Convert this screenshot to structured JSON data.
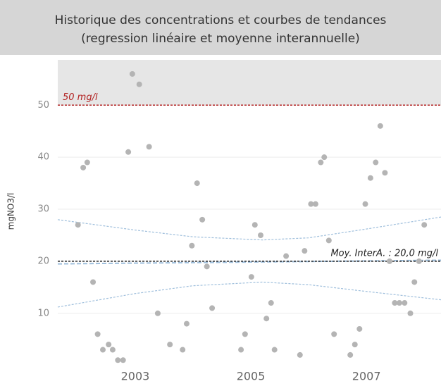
{
  "chart_data": {
    "type": "scatter",
    "title": [
      "Historique des concentrations et courbes de tendances",
      "(regression linéaire et moyenne interannuelle)"
    ],
    "y_label": "mgNO3/l",
    "xlim": [
      2001.66,
      2008.29
    ],
    "xticks": [
      2003,
      2005,
      2007
    ],
    "ylim": [
      0.5,
      58.7
    ],
    "yticks": [
      10,
      20,
      30,
      40,
      50
    ],
    "grid": true,
    "color": "#b4b4b4",
    "x": [
      2002.01,
      2002.1,
      2002.17,
      2002.27,
      2002.35,
      2002.44,
      2002.54,
      2002.61,
      2002.7,
      2002.79,
      2002.88,
      2002.95,
      2003.07,
      2003.24,
      2003.39,
      2003.6,
      2003.82,
      2003.89,
      2003.98,
      2004.07,
      2004.16,
      2004.24,
      2004.33,
      2004.83,
      2004.9,
      2005.01,
      2005.07,
      2005.17,
      2005.27,
      2005.35,
      2005.41,
      2005.61,
      2005.85,
      2005.93,
      2006.04,
      2006.12,
      2006.21,
      2006.27,
      2006.35,
      2006.44,
      2006.72,
      2006.8,
      2006.88,
      2006.98,
      2007.07,
      2007.16,
      2007.24,
      2007.32,
      2007.4,
      2007.49,
      2007.57,
      2007.66,
      2007.76,
      2007.83,
      2007.91,
      2008.0
    ],
    "values": [
      27,
      38,
      39,
      16,
      6,
      3,
      4,
      3,
      1,
      1,
      41,
      56,
      54,
      42,
      10,
      4,
      3,
      8,
      23,
      35,
      28,
      19,
      11,
      3,
      6,
      17,
      27,
      25,
      9,
      12,
      3,
      21,
      2,
      22,
      31,
      31,
      39,
      40,
      24,
      6,
      2,
      4,
      7,
      31,
      36,
      39,
      46,
      37,
      20,
      12,
      12,
      12,
      10,
      16,
      20,
      27
    ],
    "reference_lines": [
      {
        "value": 50,
        "label": "50 mg/l",
        "color": "#b22222"
      },
      {
        "value": 20,
        "label": "Moy. InterA. : 20,0 mg/l",
        "color": "#222222"
      }
    ],
    "trends": [
      {
        "color": "#9fbfdc",
        "x": [
          2001.66,
          2008.29
        ],
        "values": [
          19.5,
          20.2
        ]
      },
      {
        "color": "#9fbfdc",
        "x": [
          2001.66,
          2003,
          2004,
          2005.2,
          2006,
          2007,
          2008.29
        ],
        "values": [
          28,
          26,
          24.7,
          24.1,
          24.5,
          26.2,
          28.5
        ]
      },
      {
        "color": "#9fbfdc",
        "x": [
          2001.66,
          2003,
          2004,
          2005.2,
          2006,
          2007,
          2008.29
        ],
        "values": [
          11.2,
          13.8,
          15.3,
          16,
          15.5,
          14.2,
          12.6
        ]
      }
    ]
  }
}
